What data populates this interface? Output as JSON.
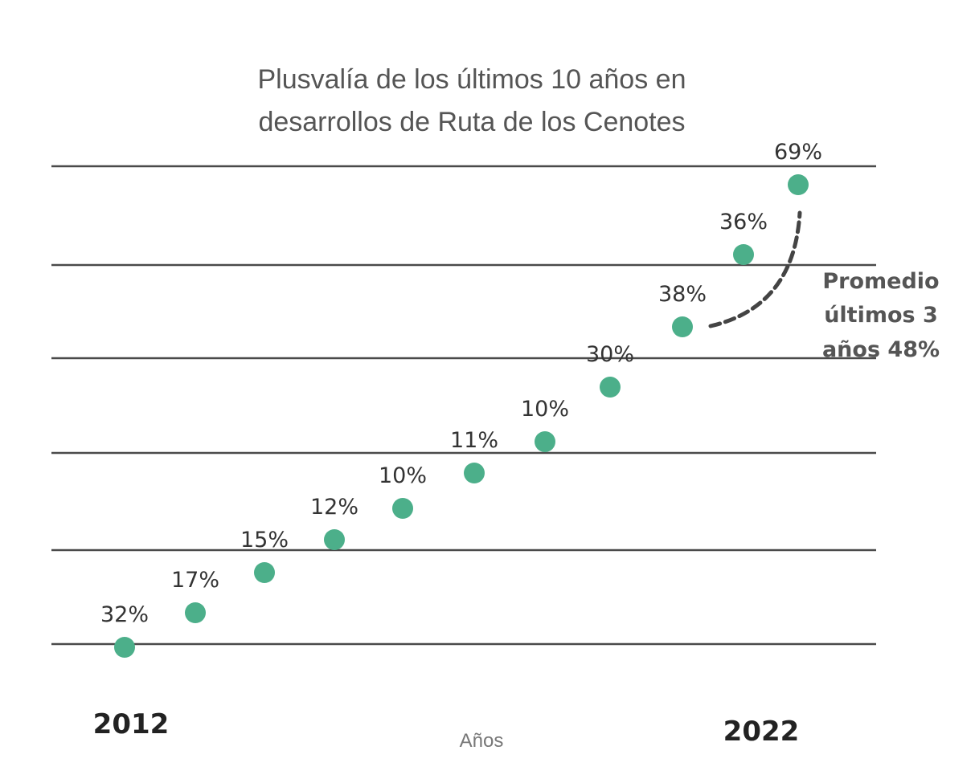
{
  "chart_data": {
    "type": "scatter",
    "title": [
      "Plusvalía de los últimos 10 años en",
      "desarrollos de Ruta de los Cenotes"
    ],
    "xlabel": "Años",
    "x_start_label": "2012",
    "x_end_label": "2022",
    "grid": true,
    "point_color": "#4caf8a",
    "points": [
      {
        "label": "32%"
      },
      {
        "label": "17%"
      },
      {
        "label": "15%"
      },
      {
        "label": "12%"
      },
      {
        "label": "10%"
      },
      {
        "label": "11%"
      },
      {
        "label": "10%"
      },
      {
        "label": "30%"
      },
      {
        "label": "38%"
      },
      {
        "label": "36%"
      },
      {
        "label": "69%"
      }
    ],
    "annotation": {
      "lines": [
        "Promedio",
        "últimos 3",
        "años 48%"
      ]
    }
  }
}
